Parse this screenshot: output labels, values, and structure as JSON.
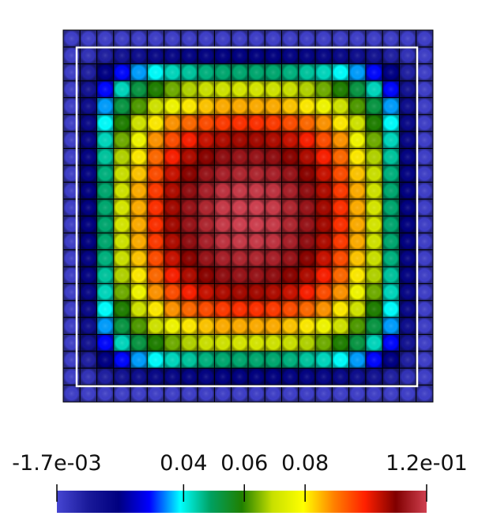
{
  "chart_data": {
    "type": "heatmap",
    "clim": [
      -0.0017,
      0.12
    ],
    "colorbar_ticks": [
      {
        "value": -0.0017,
        "label": "-1.7e-03"
      },
      0.04,
      0.06,
      0.08,
      {
        "value": 0.12,
        "label": "1.2e-01"
      }
    ],
    "colormap": [
      "#4646d2",
      "#1a1a9a",
      "#000080",
      "#0000ff",
      "#00ffff",
      "#00a060",
      "#208000",
      "#c8e000",
      "#ffff00",
      "#ff8000",
      "#ff2000",
      "#800000",
      "#d04050"
    ],
    "values": [
      [
        0,
        0,
        0,
        0,
        0,
        0,
        0,
        0,
        0,
        0,
        0,
        0,
        0,
        0,
        0,
        0,
        0,
        0,
        0,
        0,
        0,
        0
      ],
      [
        0,
        0.003,
        0.007,
        0.011,
        0.013,
        0.015,
        0.016,
        0.017,
        0.017,
        0.018,
        0.018,
        0.018,
        0.018,
        0.017,
        0.017,
        0.016,
        0.015,
        0.013,
        0.011,
        0.007,
        0.003,
        0
      ],
      [
        0,
        0.007,
        0.019,
        0.029,
        0.035,
        0.039,
        0.043,
        0.045,
        0.047,
        0.048,
        0.048,
        0.048,
        0.048,
        0.047,
        0.045,
        0.043,
        0.039,
        0.035,
        0.029,
        0.019,
        0.007,
        0
      ],
      [
        0,
        0.011,
        0.029,
        0.043,
        0.052,
        0.059,
        0.064,
        0.068,
        0.07,
        0.071,
        0.072,
        0.072,
        0.071,
        0.07,
        0.068,
        0.064,
        0.059,
        0.052,
        0.043,
        0.029,
        0.011,
        0
      ],
      [
        0,
        0.013,
        0.035,
        0.052,
        0.062,
        0.071,
        0.077,
        0.081,
        0.084,
        0.086,
        0.086,
        0.086,
        0.086,
        0.084,
        0.081,
        0.077,
        0.071,
        0.062,
        0.052,
        0.035,
        0.013,
        0
      ],
      [
        0,
        0.015,
        0.039,
        0.059,
        0.071,
        0.081,
        0.088,
        0.092,
        0.095,
        0.097,
        0.098,
        0.098,
        0.097,
        0.095,
        0.092,
        0.088,
        0.081,
        0.071,
        0.059,
        0.039,
        0.015,
        0
      ],
      [
        0,
        0.016,
        0.043,
        0.064,
        0.077,
        0.088,
        0.095,
        0.1,
        0.104,
        0.106,
        0.107,
        0.107,
        0.106,
        0.104,
        0.1,
        0.095,
        0.088,
        0.077,
        0.064,
        0.043,
        0.016,
        0
      ],
      [
        0,
        0.017,
        0.045,
        0.068,
        0.081,
        0.092,
        0.1,
        0.106,
        0.109,
        0.112,
        0.113,
        0.113,
        0.112,
        0.109,
        0.106,
        0.1,
        0.092,
        0.081,
        0.068,
        0.045,
        0.017,
        0
      ],
      [
        0,
        0.017,
        0.047,
        0.07,
        0.084,
        0.095,
        0.104,
        0.109,
        0.113,
        0.115,
        0.116,
        0.116,
        0.115,
        0.113,
        0.109,
        0.104,
        0.095,
        0.084,
        0.07,
        0.047,
        0.017,
        0
      ],
      [
        0,
        0.018,
        0.048,
        0.071,
        0.086,
        0.097,
        0.106,
        0.112,
        0.115,
        0.118,
        0.119,
        0.119,
        0.118,
        0.115,
        0.112,
        0.106,
        0.097,
        0.086,
        0.071,
        0.048,
        0.018,
        0
      ],
      [
        0,
        0.018,
        0.048,
        0.072,
        0.086,
        0.098,
        0.107,
        0.113,
        0.116,
        0.119,
        0.12,
        0.12,
        0.119,
        0.116,
        0.113,
        0.107,
        0.098,
        0.086,
        0.072,
        0.048,
        0.018,
        0
      ],
      [
        0,
        0.018,
        0.048,
        0.072,
        0.086,
        0.098,
        0.107,
        0.113,
        0.116,
        0.119,
        0.12,
        0.12,
        0.119,
        0.116,
        0.113,
        0.107,
        0.098,
        0.086,
        0.072,
        0.048,
        0.018,
        0
      ],
      [
        0,
        0.018,
        0.048,
        0.071,
        0.086,
        0.097,
        0.106,
        0.112,
        0.115,
        0.118,
        0.119,
        0.119,
        0.118,
        0.115,
        0.112,
        0.106,
        0.097,
        0.086,
        0.071,
        0.048,
        0.018,
        0
      ],
      [
        0,
        0.017,
        0.047,
        0.07,
        0.084,
        0.095,
        0.104,
        0.109,
        0.113,
        0.115,
        0.116,
        0.116,
        0.115,
        0.113,
        0.109,
        0.104,
        0.095,
        0.084,
        0.07,
        0.047,
        0.017,
        0
      ],
      [
        0,
        0.017,
        0.045,
        0.068,
        0.081,
        0.092,
        0.1,
        0.106,
        0.109,
        0.112,
        0.113,
        0.113,
        0.112,
        0.109,
        0.106,
        0.1,
        0.092,
        0.081,
        0.068,
        0.045,
        0.017,
        0
      ],
      [
        0,
        0.016,
        0.043,
        0.064,
        0.077,
        0.088,
        0.095,
        0.1,
        0.104,
        0.106,
        0.107,
        0.107,
        0.106,
        0.104,
        0.1,
        0.095,
        0.088,
        0.077,
        0.064,
        0.043,
        0.016,
        0
      ],
      [
        0,
        0.015,
        0.039,
        0.059,
        0.071,
        0.081,
        0.088,
        0.092,
        0.095,
        0.097,
        0.098,
        0.098,
        0.097,
        0.095,
        0.092,
        0.088,
        0.081,
        0.071,
        0.059,
        0.039,
        0.015,
        0
      ],
      [
        0,
        0.013,
        0.035,
        0.052,
        0.062,
        0.071,
        0.077,
        0.081,
        0.084,
        0.086,
        0.086,
        0.086,
        0.086,
        0.084,
        0.081,
        0.077,
        0.071,
        0.062,
        0.052,
        0.035,
        0.013,
        0
      ],
      [
        0,
        0.011,
        0.029,
        0.043,
        0.052,
        0.059,
        0.064,
        0.068,
        0.07,
        0.071,
        0.072,
        0.072,
        0.071,
        0.07,
        0.068,
        0.064,
        0.059,
        0.052,
        0.043,
        0.029,
        0.011,
        0
      ],
      [
        0,
        0.007,
        0.019,
        0.029,
        0.035,
        0.039,
        0.043,
        0.045,
        0.047,
        0.048,
        0.048,
        0.048,
        0.048,
        0.047,
        0.045,
        0.043,
        0.039,
        0.035,
        0.029,
        0.019,
        0.007,
        0
      ],
      [
        0,
        0.003,
        0.007,
        0.011,
        0.013,
        0.015,
        0.016,
        0.017,
        0.017,
        0.018,
        0.018,
        0.018,
        0.018,
        0.017,
        0.017,
        0.016,
        0.015,
        0.013,
        0.011,
        0.007,
        0.003,
        0
      ],
      [
        0,
        0,
        0,
        0,
        0,
        0,
        0,
        0,
        0,
        0,
        0,
        0,
        0,
        0,
        0,
        0,
        0,
        0,
        0,
        0,
        0,
        0
      ]
    ]
  }
}
